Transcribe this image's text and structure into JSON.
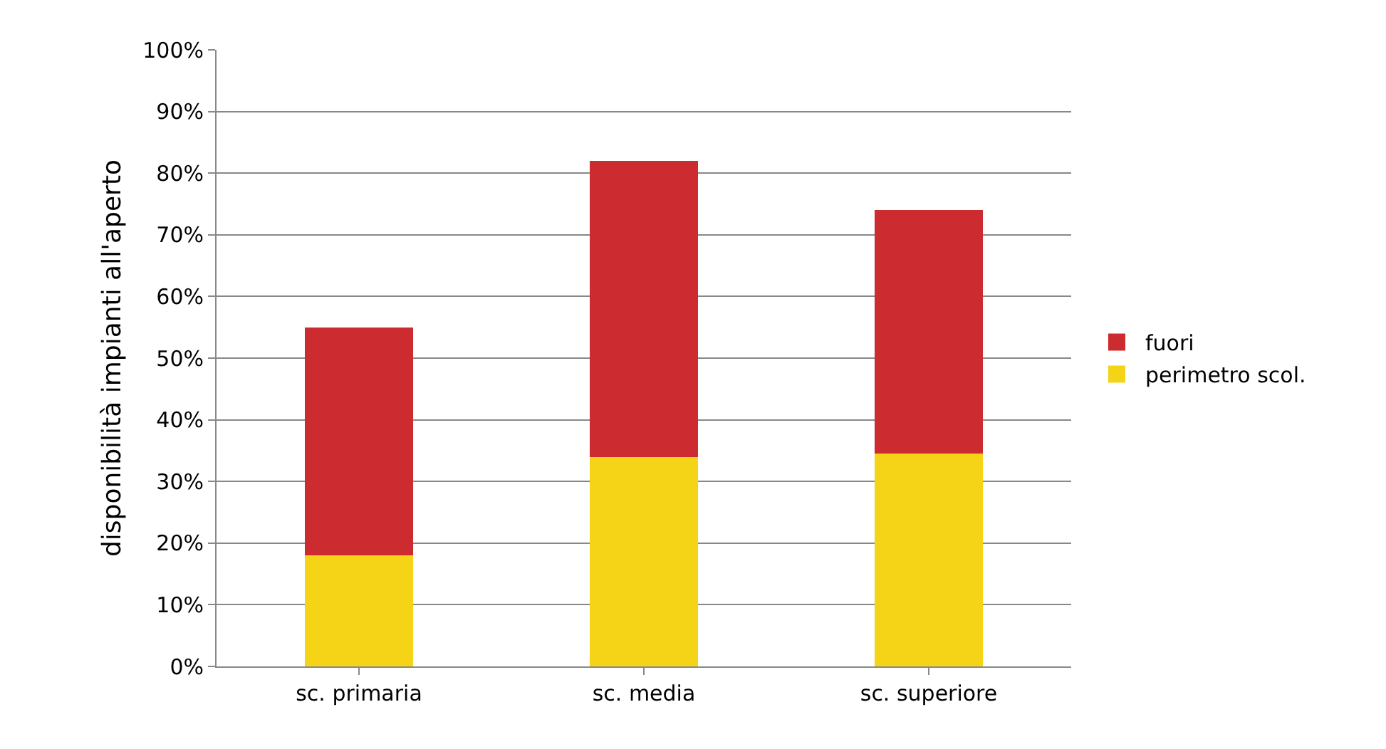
{
  "chart_data": {
    "type": "bar",
    "stacked": true,
    "ylabel": "disponibilità impianti all'aperto",
    "categories": [
      "sc. primaria",
      "sc. media",
      "sc. superiore"
    ],
    "series": [
      {
        "name": "perimetro scol.",
        "color": "#f5d316",
        "values": [
          18,
          34,
          34.5
        ]
      },
      {
        "name": "fuori",
        "color": "#cc2b2f",
        "values": [
          37,
          48,
          39.5
        ]
      }
    ],
    "ylim": [
      0,
      100
    ],
    "yticks": [
      {
        "value": 0,
        "label": "0%"
      },
      {
        "value": 10,
        "label": "10%"
      },
      {
        "value": 20,
        "label": "20%"
      },
      {
        "value": 30,
        "label": "30%"
      },
      {
        "value": 40,
        "label": "40%"
      },
      {
        "value": 50,
        "label": "50%"
      },
      {
        "value": 60,
        "label": "60%"
      },
      {
        "value": 70,
        "label": "70%"
      },
      {
        "value": 80,
        "label": "80%"
      },
      {
        "value": 90,
        "label": "90%"
      },
      {
        "value": 100,
        "label": "100%"
      }
    ],
    "grid": "y",
    "legend": "right"
  }
}
